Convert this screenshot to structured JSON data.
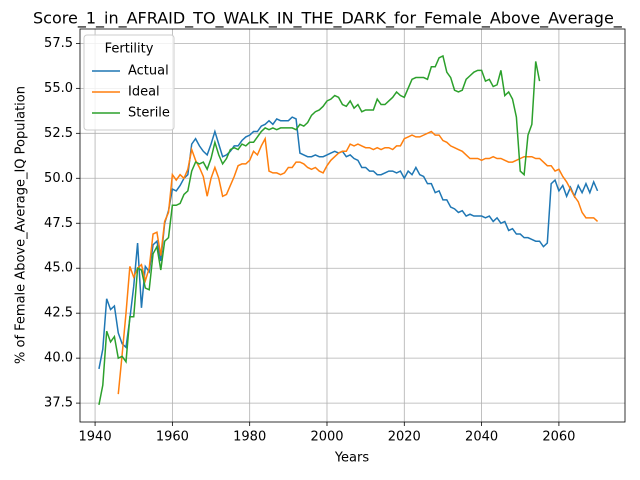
{
  "chart_data": {
    "type": "line",
    "title": "Score_1_in_AFRAID_TO_WALK_IN_THE_DARK_for_Female_Above_Average_",
    "xlabel": "Years",
    "ylabel": "% of Female Above_Average_IQ Population",
    "legend_title": "Fertility",
    "legend": "upper left",
    "grid": true,
    "xlim": [
      1936.1,
      2077.1
    ],
    "ylim": [
      36.45,
      58.3
    ],
    "xticks": [
      1940,
      1960,
      1980,
      2000,
      2020,
      2040,
      2060
    ],
    "yticks": [
      37.5,
      {
        "value": 40,
        "label": "40.0"
      },
      42.5,
      {
        "value": 45,
        "label": "45.0"
      },
      47.5,
      {
        "value": 50,
        "label": "50.0"
      },
      52.5,
      {
        "value": 55,
        "label": "55.0"
      },
      57.5
    ],
    "x": [
      1941,
      1942,
      1943,
      1944,
      1945,
      1946,
      1947,
      1948,
      1949,
      1950,
      1951,
      1952,
      1953,
      1954,
      1955,
      1956,
      1957,
      1958,
      1959,
      1960,
      1961,
      1962,
      1963,
      1964,
      1965,
      1966,
      1967,
      1968,
      1969,
      1970,
      1971,
      1972,
      1973,
      1974,
      1975,
      1976,
      1977,
      1978,
      1979,
      1980,
      1981,
      1982,
      1983,
      1984,
      1985,
      1986,
      1987,
      1988,
      1989,
      1990,
      1991,
      1992,
      1993,
      1994,
      1995,
      1996,
      1997,
      1998,
      1999,
      2000,
      2001,
      2002,
      2003,
      2004,
      2005,
      2006,
      2007,
      2008,
      2009,
      2010,
      2011,
      2012,
      2013,
      2014,
      2015,
      2016,
      2017,
      2018,
      2019,
      2020,
      2021,
      2022,
      2023,
      2024,
      2025,
      2026,
      2027,
      2028,
      2029,
      2030,
      2031,
      2032,
      2033,
      2034,
      2035,
      2036,
      2037,
      2038,
      2039,
      2040,
      2041,
      2042,
      2043,
      2044,
      2045,
      2046,
      2047,
      2048,
      2049,
      2050,
      2051,
      2052,
      2053,
      2054,
      2055,
      2056,
      2057,
      2058,
      2059,
      2060,
      2061,
      2062,
      2063,
      2064,
      2065,
      2066,
      2067,
      2068,
      2069,
      2070
    ],
    "series": [
      {
        "name": "Actual",
        "color": "#1f77b4",
        "values": [
          39.4,
          40.5,
          43.3,
          42.7,
          42.9,
          41.4,
          40.8,
          40.6,
          42.2,
          44.0,
          46.4,
          42.8,
          45.1,
          44.8,
          46.3,
          46.5,
          45.4,
          47.5,
          48.2,
          49.4,
          49.3,
          49.6,
          50.0,
          50.2,
          51.9,
          52.2,
          51.8,
          51.5,
          51.3,
          51.9,
          52.6,
          51.9,
          51.2,
          51.3,
          51.5,
          51.8,
          51.8,
          52.1,
          52.3,
          52.4,
          52.6,
          52.6,
          52.9,
          53.0,
          53.2,
          53.0,
          53.3,
          53.2,
          53.2,
          53.2,
          53.4,
          53.3,
          51.4,
          51.3,
          51.2,
          51.2,
          51.3,
          51.2,
          51.2,
          51.3,
          51.4,
          51.5,
          51.4,
          51.5,
          51.2,
          51.3,
          51.1,
          51.0,
          50.6,
          50.6,
          50.4,
          50.4,
          50.2,
          50.2,
          50.3,
          50.4,
          50.4,
          50.3,
          50.4,
          50.0,
          50.4,
          50.2,
          50.6,
          50.2,
          50.1,
          49.7,
          49.7,
          49.2,
          49.3,
          48.8,
          48.8,
          48.4,
          48.3,
          48.1,
          48.2,
          47.9,
          48.0,
          47.9,
          47.9,
          47.9,
          47.8,
          47.9,
          47.6,
          47.8,
          47.5,
          47.6,
          47.1,
          47.2,
          46.9,
          46.9,
          46.7,
          46.7,
          46.6,
          46.5,
          46.5,
          46.2,
          46.4,
          49.7,
          49.9,
          49.3,
          49.6,
          49.0,
          49.5,
          49.0,
          49.6,
          49.2,
          49.7,
          49.2,
          49.8,
          49.3
        ]
      },
      {
        "name": "Ideal",
        "color": "#ff7f0e",
        "values": [
          null,
          null,
          null,
          null,
          null,
          38.0,
          40.2,
          42.5,
          45.1,
          44.5,
          45.0,
          45.2,
          44.3,
          45.0,
          46.9,
          47.0,
          45.7,
          47.6,
          48.1,
          50.2,
          49.9,
          50.2,
          50.0,
          50.5,
          51.6,
          51.0,
          50.6,
          50.1,
          49.0,
          50.0,
          50.6,
          50.0,
          49.0,
          49.1,
          49.6,
          50.1,
          50.7,
          50.8,
          50.8,
          51.0,
          51.5,
          51.3,
          51.8,
          52.2,
          50.4,
          50.3,
          50.3,
          50.2,
          50.3,
          50.6,
          50.6,
          50.9,
          50.9,
          50.8,
          50.6,
          50.5,
          50.6,
          50.4,
          50.3,
          50.7,
          51.0,
          51.2,
          51.4,
          51.5,
          51.5,
          51.9,
          51.8,
          51.9,
          51.8,
          51.7,
          51.7,
          51.6,
          51.7,
          51.6,
          51.7,
          51.7,
          51.6,
          51.8,
          51.8,
          52.2,
          52.3,
          52.4,
          52.3,
          52.3,
          52.4,
          52.5,
          52.6,
          52.4,
          52.4,
          52.1,
          52.0,
          51.8,
          51.7,
          51.6,
          51.5,
          51.3,
          51.1,
          51.1,
          51.1,
          51.0,
          51.1,
          51.1,
          51.2,
          51.1,
          51.1,
          51.0,
          50.9,
          50.9,
          51.0,
          51.1,
          51.2,
          51.2,
          51.2,
          51.1,
          51.1,
          50.9,
          50.7,
          50.7,
          50.4,
          50.5,
          50.1,
          49.8,
          49.4,
          49.0,
          48.7,
          48.1,
          47.8,
          47.8,
          47.8,
          47.6
        ]
      },
      {
        "name": "Sterile",
        "color": "#2ca02c",
        "values": [
          37.4,
          38.5,
          41.5,
          40.9,
          41.2,
          40.0,
          40.1,
          39.8,
          42.3,
          42.3,
          45.0,
          44.9,
          43.9,
          43.8,
          45.8,
          46.2,
          44.9,
          46.5,
          46.7,
          48.5,
          48.5,
          48.6,
          49.1,
          49.3,
          50.4,
          50.9,
          50.8,
          50.9,
          50.5,
          51.1,
          52.0,
          51.3,
          50.8,
          51.1,
          51.6,
          51.7,
          51.6,
          51.9,
          51.8,
          52.0,
          52.0,
          52.3,
          52.6,
          52.8,
          52.7,
          52.8,
          52.7,
          52.8,
          52.8,
          52.8,
          52.8,
          52.7,
          53.0,
          52.9,
          53.1,
          53.5,
          53.7,
          53.8,
          54.0,
          54.3,
          54.4,
          54.6,
          54.5,
          54.1,
          54.0,
          54.3,
          53.9,
          54.1,
          53.7,
          53.8,
          53.8,
          53.8,
          54.4,
          54.1,
          54.1,
          54.3,
          54.5,
          54.8,
          54.6,
          54.5,
          55.0,
          55.5,
          55.6,
          55.6,
          55.6,
          55.5,
          56.2,
          56.2,
          56.7,
          56.8,
          55.9,
          55.6,
          54.9,
          54.8,
          54.9,
          55.5,
          55.7,
          55.9,
          56.0,
          56.0,
          55.4,
          55.5,
          55.1,
          55.2,
          56.0,
          54.6,
          54.8,
          54.4,
          53.4,
          50.4,
          50.2,
          52.4,
          53.0,
          56.5,
          55.4,
          null,
          null,
          null,
          null,
          null,
          null,
          null,
          null,
          null,
          null,
          null,
          null,
          null,
          null,
          null
        ]
      }
    ]
  }
}
